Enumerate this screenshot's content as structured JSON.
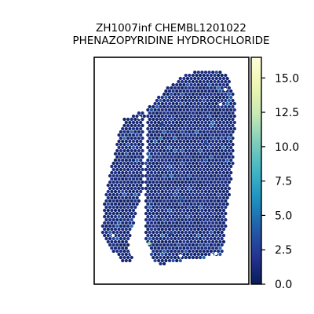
{
  "chart_data": {
    "type": "scatter",
    "title_lines": [
      "ZH1007inf CHEMBL1201022",
      "PHENAZOPYRIDINE HYDROCHLORIDE"
    ],
    "xlabel": "",
    "ylabel": "",
    "colorbar": {
      "colormap": "YlGnBu",
      "range": [
        0,
        16.5
      ],
      "ticks": [
        0.0,
        2.5,
        5.0,
        7.5,
        10.0,
        12.5,
        15.0
      ],
      "tick_labels": [
        "0.0",
        "2.5",
        "5.0",
        "7.5",
        "10.0",
        "12.5",
        "15.0"
      ],
      "stops": [
        "#081d58",
        "#253494",
        "#225ea8",
        "#1d91c0",
        "#41b6c4",
        "#7fcdbb",
        "#c7e9b4",
        "#edf8b1",
        "#ffffd9"
      ]
    },
    "grid": false,
    "points_summary": "Hexagonal spot array forming the tissue section; nearly all spots have values near 0-2 (dark navy), with scattered spots around 3-5 and one outlier near 11."
  }
}
